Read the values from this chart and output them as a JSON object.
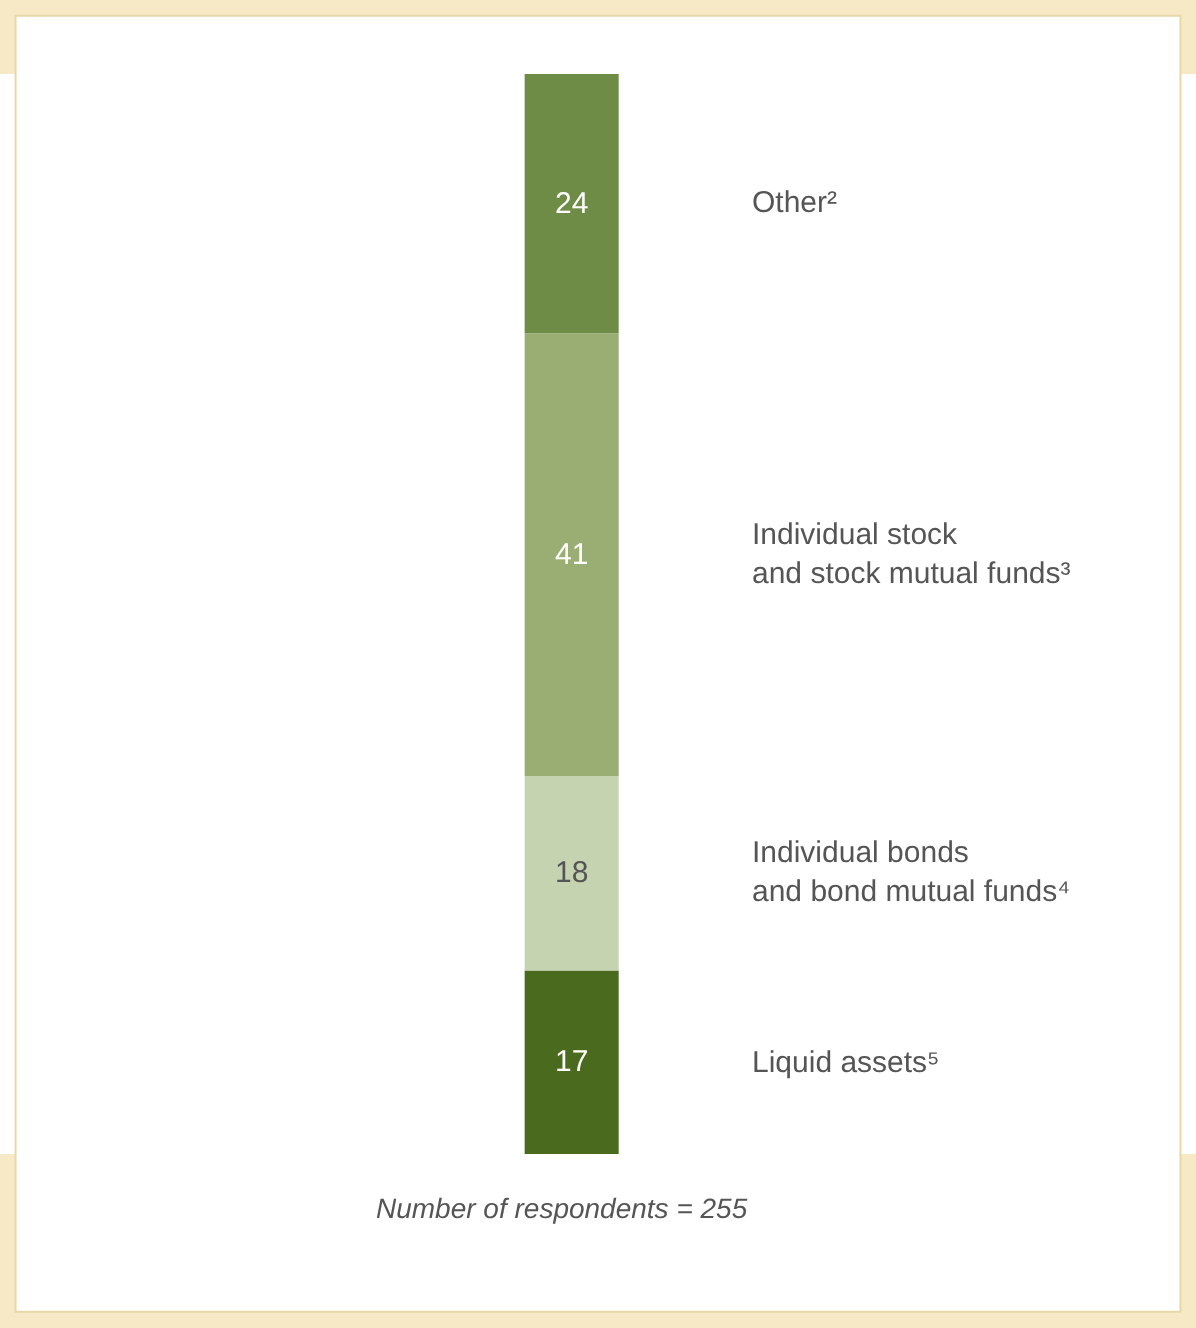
{
  "chart_data": {
    "type": "bar",
    "stacked": true,
    "data_labels": true,
    "legend": false,
    "grid": false,
    "tick_labels": false,
    "categories": [
      null
    ],
    "series": [
      {
        "name": "Liquid assets⁵",
        "color": "#4a6b1e",
        "values": [
          17
        ]
      },
      {
        "name": "Individual bonds\nand bond mutual funds⁴",
        "color": "#c6d3b0",
        "values": [
          18
        ]
      },
      {
        "name": "Individual stock\nand stock mutual funds³",
        "color": "#9aae74",
        "values": [
          41
        ]
      },
      {
        "name": "Other²",
        "color": "#6e8c46",
        "values": [
          24
        ]
      }
    ],
    "annotations": [
      "Number of respondents = 255"
    ]
  }
}
